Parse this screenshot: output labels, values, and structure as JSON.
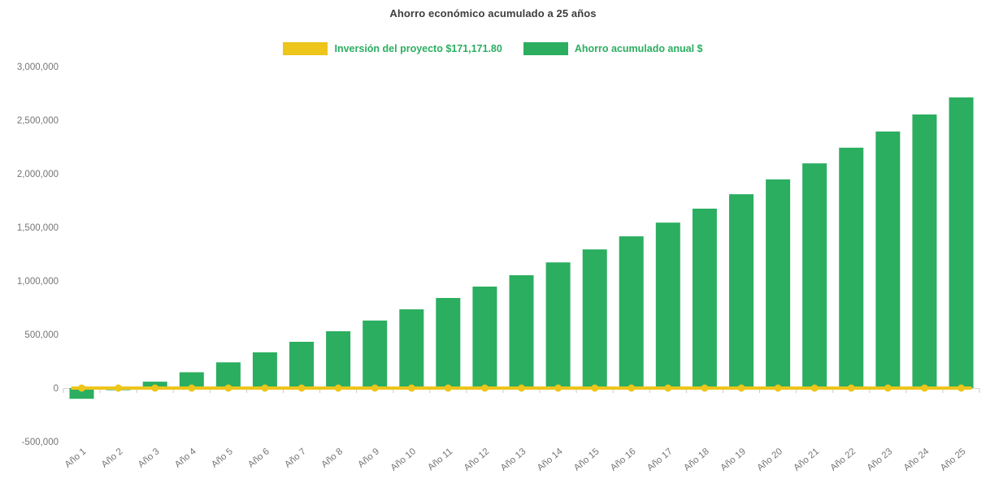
{
  "title": "Ahorro económico acumulado a 25 años",
  "legend": {
    "label_color": "#2BAE60",
    "items": [
      {
        "label": "Inversión del proyecto $171,171.80",
        "swatch_color": "#EDC51B",
        "series_type": "line"
      },
      {
        "label": "Ahorro acumulado anual $",
        "swatch_color": "#2BAE60",
        "series_type": "bar"
      }
    ]
  },
  "chart_data": {
    "type": "bar",
    "title": "Ahorro económico acumulado a 25 años",
    "categories": [
      "Año 1",
      "Año 2",
      "Año 3",
      "Año 4",
      "Año 5",
      "Año 6",
      "Año 7",
      "Año 8",
      "Año 9",
      "Año 10",
      "Año 11",
      "Año 12",
      "Año 13",
      "Año 14",
      "Año 15",
      "Año 16",
      "Año 17",
      "Año 18",
      "Año 19",
      "Año 20",
      "Año 21",
      "Año 22",
      "Año 23",
      "Año 24",
      "Año 25"
    ],
    "series": [
      {
        "name": "Inversión del proyecto $171,171.80",
        "type": "line",
        "color": "#EDC51B",
        "constant_value": 171171.8,
        "plotted_level": 0,
        "markers": "circle"
      },
      {
        "name": "Ahorro acumulado anual $",
        "type": "bar",
        "color": "#2BAE60",
        "values": [
          -100000,
          -20000,
          60000,
          148000,
          240000,
          333000,
          432000,
          530000,
          630000,
          735000,
          841000,
          947000,
          1053000,
          1173000,
          1294000,
          1416000,
          1544000,
          1674000,
          1809000,
          1947000,
          2097000,
          2243000,
          2394000,
          2553000,
          2712000
        ]
      }
    ],
    "ylim": [
      -500000,
      3000000
    ],
    "ytick_step": 500000,
    "ytick_labels": [
      "-500,000",
      "0",
      "500,000",
      "1,000,000",
      "1,500,000",
      "2,000,000",
      "2,500,000",
      "3,000,000"
    ],
    "grid": false,
    "legend_position": "top",
    "axis_label_color": "#757575",
    "background": "#ffffff"
  }
}
